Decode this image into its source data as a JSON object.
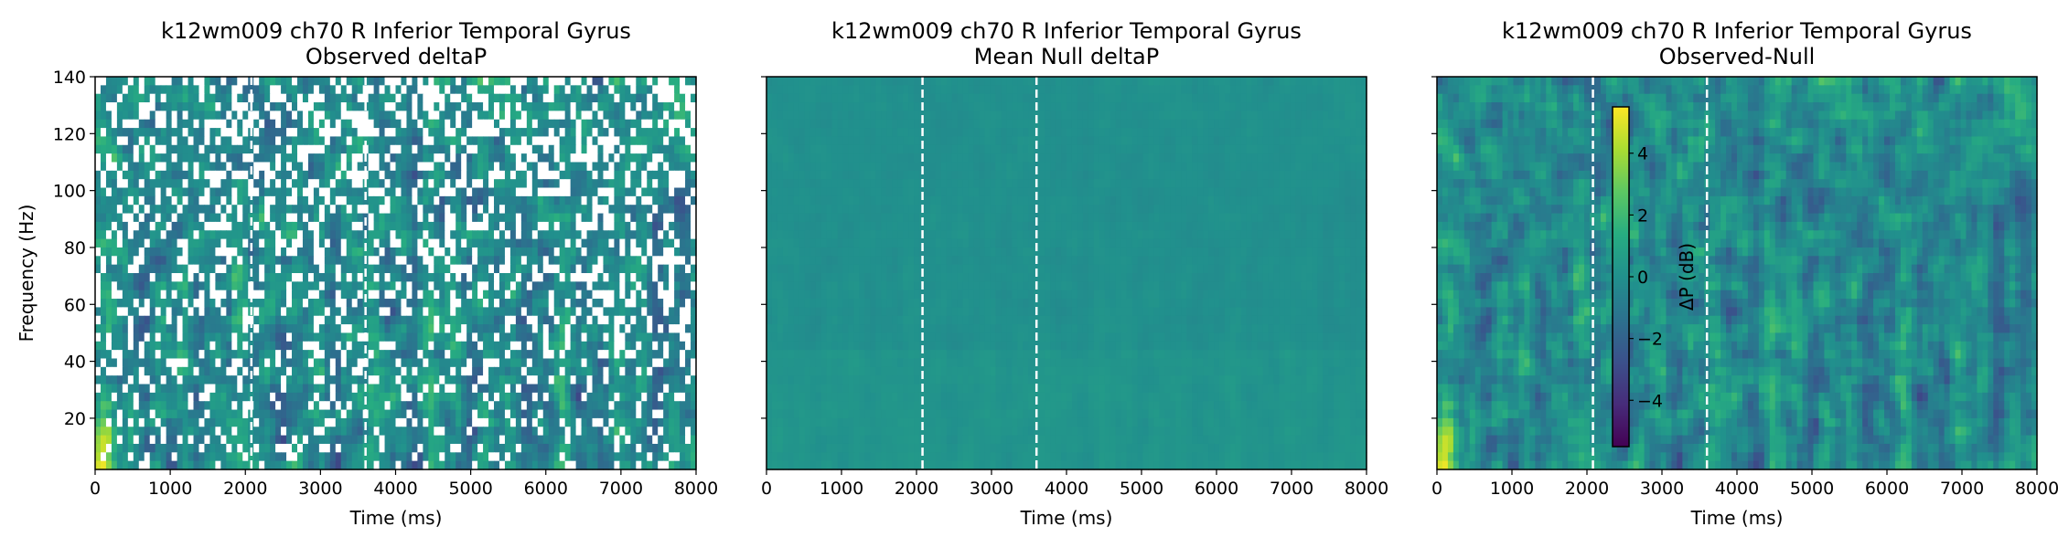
{
  "chart_data": [
    {
      "type": "heatmap",
      "title": "k12wm009 ch70 R Inferior Temporal Gyrus",
      "subtitle": "Observed deltaP",
      "xlabel": "Time (ms)",
      "ylabel": "Frequency (Hz)",
      "xlim": [
        0,
        8000
      ],
      "ylim": [
        2,
        140
      ],
      "xticks": [
        0,
        1000,
        2000,
        3000,
        4000,
        5000,
        6000,
        7000,
        8000
      ],
      "yticks": [
        20,
        40,
        60,
        80,
        100,
        120,
        140
      ],
      "vlines_ms": [
        2080,
        3600
      ],
      "colormap": "viridis",
      "masked": true,
      "mask_color": "#ffffff"
    },
    {
      "type": "heatmap",
      "title": "k12wm009 ch70 R Inferior Temporal Gyrus",
      "subtitle": "Mean Null deltaP",
      "xlabel": "Time (ms)",
      "ylabel": "",
      "xlim": [
        0,
        8000
      ],
      "ylim": [
        2,
        140
      ],
      "xticks": [
        0,
        1000,
        2000,
        3000,
        4000,
        5000,
        6000,
        7000,
        8000
      ],
      "yticks": [
        20,
        40,
        60,
        80,
        100,
        120,
        140
      ],
      "vlines_ms": [
        2080,
        3600
      ],
      "colormap": "viridis",
      "value_range_db": [
        -0.5,
        0.5
      ]
    },
    {
      "type": "heatmap",
      "title": "k12wm009 ch70 R Inferior Temporal Gyrus",
      "subtitle": "Observed-Null",
      "xlabel": "Time (ms)",
      "ylabel": "",
      "xlim": [
        0,
        8000
      ],
      "ylim": [
        2,
        140
      ],
      "xticks": [
        0,
        1000,
        2000,
        3000,
        4000,
        5000,
        6000,
        7000,
        8000
      ],
      "yticks": [
        20,
        40,
        60,
        80,
        100,
        120,
        140
      ],
      "vlines_ms": [
        2080,
        3600
      ],
      "colormap": "viridis",
      "colorbar": {
        "label": "ΔP (dB)",
        "range": [
          -5.5,
          5.5
        ],
        "ticks": [
          4,
          2,
          0,
          -2,
          -4
        ],
        "tick_labels": [
          "4",
          "2",
          "0",
          "−2",
          "−4"
        ]
      }
    }
  ]
}
